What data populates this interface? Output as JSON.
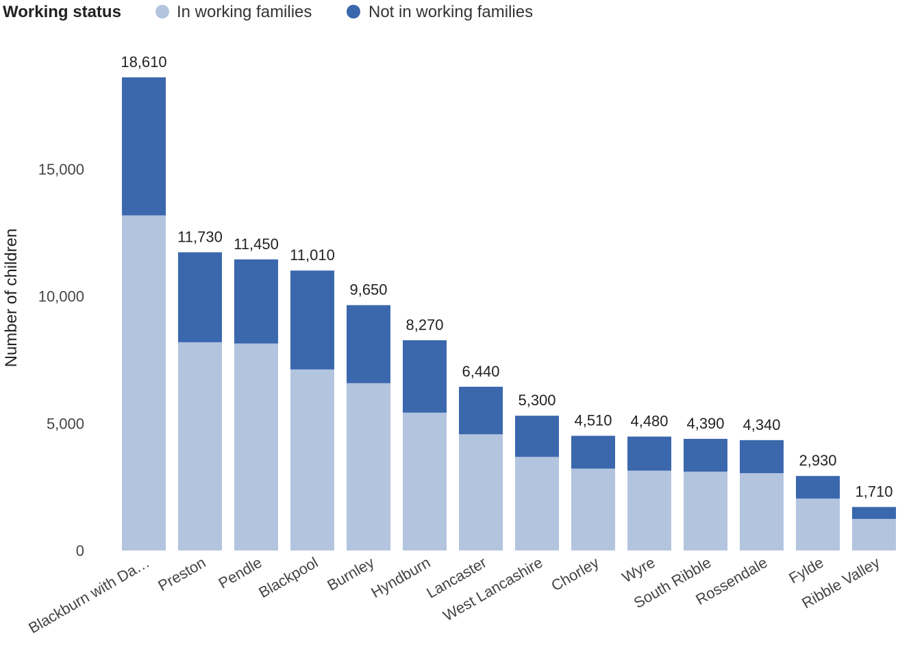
{
  "legend": {
    "title": "Working status",
    "items": [
      {
        "label": "In working families",
        "color": "#b3c4df"
      },
      {
        "label": "Not in working families",
        "color": "#3b67ad"
      }
    ]
  },
  "chart_data": {
    "type": "bar",
    "stacked": true,
    "ylabel": "Number of children",
    "xlabel": "",
    "ylim": [
      0,
      18610
    ],
    "yticks": [
      0,
      5000,
      10000,
      15000
    ],
    "ytick_labels": [
      "0",
      "5,000",
      "10,000",
      "15,000"
    ],
    "grid": false,
    "legend_position": "top-left",
    "categories": [
      "Blackburn with Da…",
      "Preston",
      "Pendle",
      "Blackpool",
      "Burnley",
      "Hyndburn",
      "Lancaster",
      "West Lancashire",
      "Chorley",
      "Wyre",
      "South Ribble",
      "Rossendale",
      "Fylde",
      "Ribble Valley"
    ],
    "totals": [
      18610,
      11730,
      11450,
      11010,
      9650,
      8270,
      6440,
      5300,
      4510,
      4480,
      4390,
      4340,
      2930,
      1710
    ],
    "total_labels": [
      "18,610",
      "11,730",
      "11,450",
      "11,010",
      "9,650",
      "8,270",
      "6,440",
      "5,300",
      "4,510",
      "4,480",
      "4,390",
      "4,340",
      "2,930",
      "1,710"
    ],
    "series": [
      {
        "name": "In working families",
        "color": "#b3c4df",
        "values": [
          13180,
          8190,
          8140,
          7120,
          6580,
          5420,
          4570,
          3680,
          3220,
          3140,
          3100,
          3040,
          2040,
          1240
        ]
      },
      {
        "name": "Not in working families",
        "color": "#3b67ad",
        "values": [
          5430,
          3540,
          3310,
          3890,
          3070,
          2850,
          1870,
          1620,
          1290,
          1340,
          1290,
          1300,
          890,
          470
        ]
      }
    ]
  }
}
